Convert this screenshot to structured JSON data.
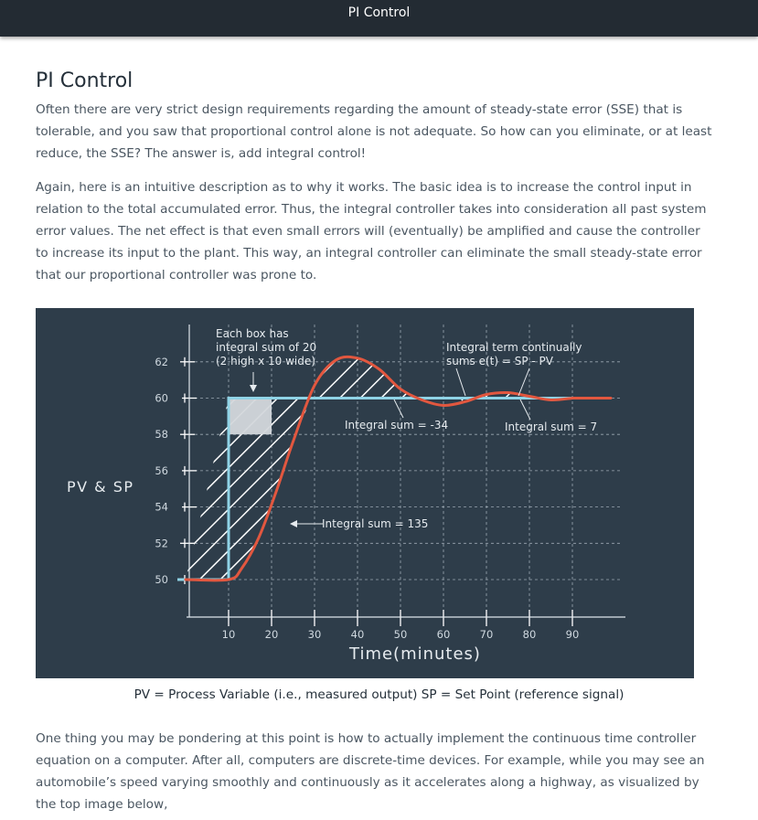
{
  "header": {
    "title": "PI Control"
  },
  "article": {
    "title": "PI Control",
    "paragraphs": [
      "Often there are very strict design requirements regarding the amount of steady-state error (SSE) that is tolerable, and you saw that proportional control alone is not adequate. So how can you eliminate, or at least reduce, the SSE? The answer is, add integral control!",
      "Again, here is an intuitive description as to why it works. The basic idea is to increase the control input in relation to the total accumulated error. Thus, the integral controller takes into consideration all past system error values. The net effect is that even small errors will (eventually) be amplified and cause the controller to increase its input to the plant. This way, an integral controller can eliminate the small steady-state error that our proportional controller was prone to.",
      "One thing you may be pondering at this point is how to actually implement the continuous time controller equation on a computer. After all, computers are discrete-time devices. For example, while you may see an automobile’s speed varying smoothly and continuously as it accelerates along a highway, as visualized by the top image below,"
    ],
    "caption": "PV = Process Variable (i.e., measured output) SP = Set Point (reference signal)"
  },
  "colors": {
    "figure_bg": "#2e3d4a",
    "setpoint": "#8fd3e6",
    "process_variable": "#e2573f",
    "topbar": "#232b33"
  },
  "chart_data": {
    "type": "line",
    "ylabel": "PV & SP",
    "xlabel": "Time(minutes)",
    "xticks": [
      "10",
      "20",
      "30",
      "40",
      "50",
      "60",
      "70",
      "80",
      "90"
    ],
    "yticks": [
      "62",
      "60",
      "58",
      "56",
      "54",
      "52",
      "50"
    ],
    "grid": true,
    "series": [
      {
        "name": "SP",
        "x": [
          0,
          10,
          10,
          90
        ],
        "y": [
          50,
          50,
          60,
          60
        ]
      },
      {
        "name": "PV",
        "x": [
          0,
          10,
          13,
          17,
          21,
          25,
          30,
          35,
          40,
          45,
          50,
          55,
          60,
          65,
          70,
          75,
          80,
          85,
          90
        ],
        "y": [
          50,
          50,
          50.6,
          52.3,
          54.8,
          57.6,
          60.7,
          62.1,
          62.2,
          61.6,
          60.5,
          59.9,
          59.6,
          59.8,
          60.2,
          60.3,
          60.1,
          59.9,
          60.0
        ]
      }
    ],
    "annotations": [
      "Each box has integral sum of 20 (2 high x 10 wide)",
      "Integral term continually sums e(t) = SP - PV",
      "Integral sum = -34",
      "Integral sum = 7",
      "Integral sum = 135"
    ]
  }
}
